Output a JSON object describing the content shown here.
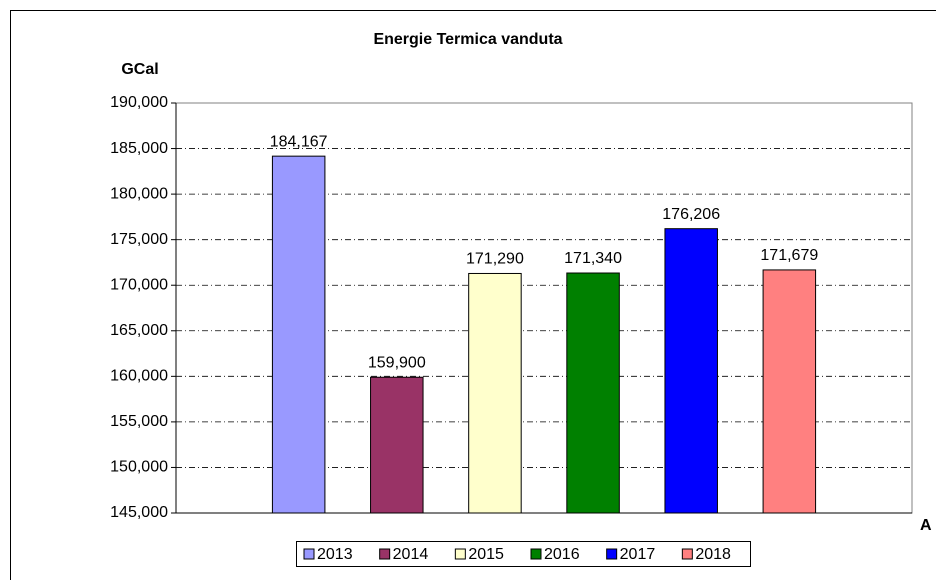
{
  "chart_data": {
    "type": "bar",
    "title": "Energie Termica vanduta",
    "y_label": "GCal",
    "x_label": "A",
    "categories": [
      null
    ],
    "series": [
      {
        "name": "2013",
        "color": "#9999ff",
        "values": [
          184167
        ],
        "value_labels": [
          "184,167"
        ]
      },
      {
        "name": "2014",
        "color": "#993366",
        "values": [
          159900
        ],
        "value_labels": [
          "159,900"
        ]
      },
      {
        "name": "2015",
        "color": "#ffffcc",
        "values": [
          171290
        ],
        "value_labels": [
          "171,290"
        ]
      },
      {
        "name": "2016",
        "color": "#008000",
        "values": [
          171340
        ],
        "value_labels": [
          "171,340"
        ]
      },
      {
        "name": "2017",
        "color": "#0000ff",
        "values": [
          176206
        ],
        "value_labels": [
          "176,206"
        ]
      },
      {
        "name": "2018",
        "color": "#ff8080",
        "values": [
          171679
        ],
        "value_labels": [
          "171,679"
        ]
      }
    ],
    "ylim": [
      145000,
      190000
    ],
    "yticks": [
      {
        "value": 145000,
        "label": "145,000"
      },
      {
        "value": 150000,
        "label": "150,000"
      },
      {
        "value": 155000,
        "label": "155,000"
      },
      {
        "value": 160000,
        "label": "160,000"
      },
      {
        "value": 165000,
        "label": "165,000"
      },
      {
        "value": 170000,
        "label": "170,000"
      },
      {
        "value": 175000,
        "label": "175,000"
      },
      {
        "value": 180000,
        "label": "180,000"
      },
      {
        "value": 185000,
        "label": "185,000"
      },
      {
        "value": 190000,
        "label": "190,000"
      }
    ],
    "grid": true,
    "legend": "bottom"
  }
}
